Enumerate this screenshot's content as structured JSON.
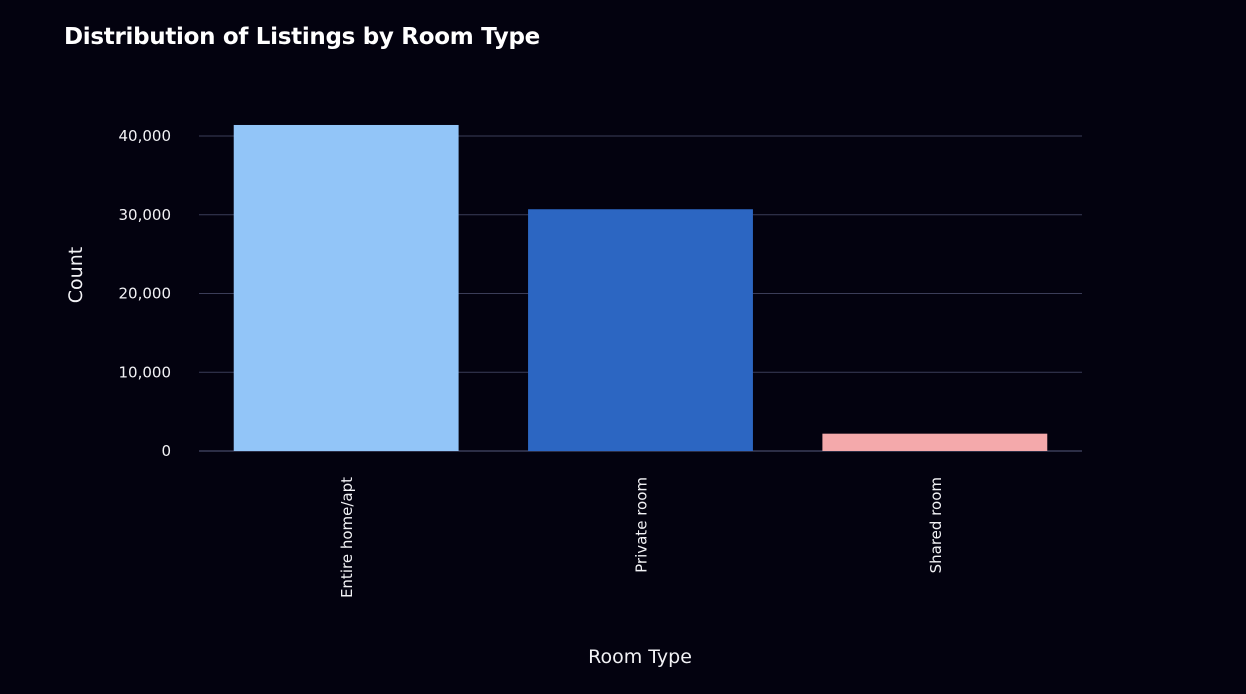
{
  "chart_data": {
    "type": "bar",
    "title": "Distribution of Listings by Room Type",
    "xlabel": "Room Type",
    "ylabel": "Count",
    "categories": [
      "Entire home/apt",
      "Private room",
      "Shared room"
    ],
    "values": [
      41400,
      30700,
      2200
    ],
    "colors": [
      "#92c5f8",
      "#2c66c2",
      "#f4a9ab"
    ],
    "ylim": [
      0,
      43000
    ],
    "yticks": [
      0,
      10000,
      20000,
      30000,
      40000
    ],
    "ytick_labels": [
      "0",
      "10,000",
      "20,000",
      "30,000",
      "40,000"
    ],
    "grid": true,
    "legend": "none"
  },
  "style": {
    "background": "#03020f",
    "gridline_color": "#3b3d58",
    "text_color": "#f2f2f5"
  }
}
